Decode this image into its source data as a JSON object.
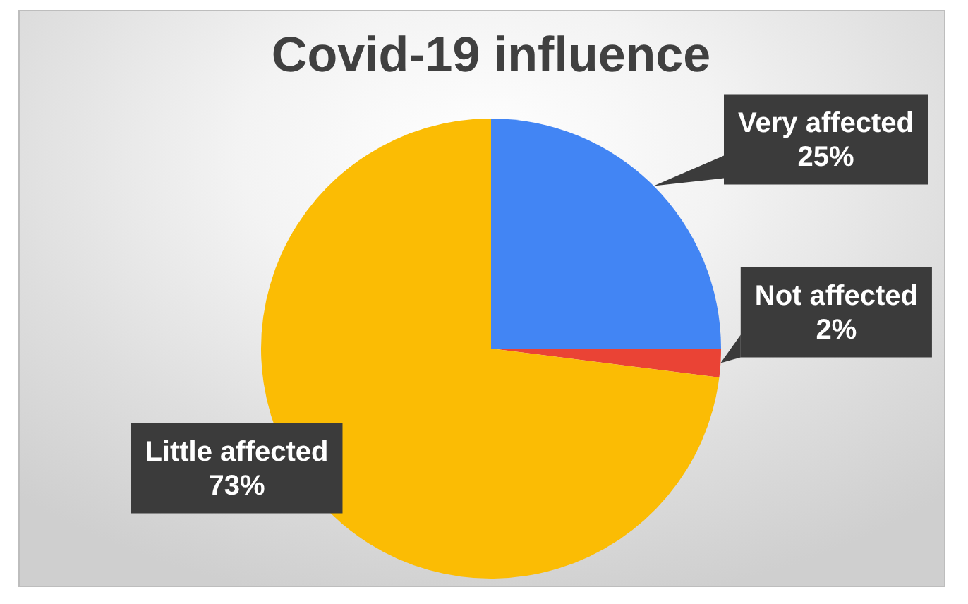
{
  "chart_data": {
    "type": "pie",
    "title": "Covid-19 influence",
    "categories": [
      "Very affected",
      "Not affected",
      "Little affected"
    ],
    "values": [
      25,
      2,
      73
    ],
    "colors": [
      "#4285f4",
      "#ea4335",
      "#fbbc04"
    ],
    "value_labels": [
      "25%",
      "2%",
      "73%"
    ]
  }
}
